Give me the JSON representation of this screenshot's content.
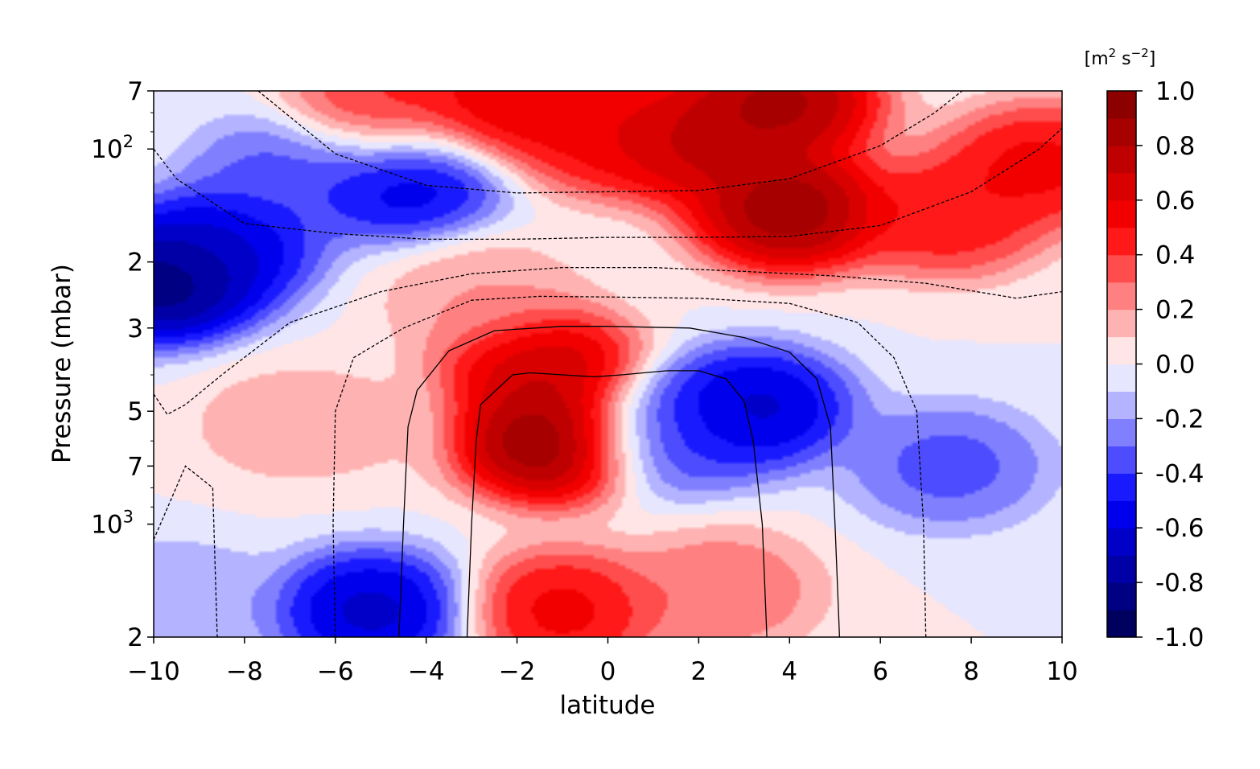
{
  "chart_data": {
    "type": "heatmap",
    "title": "",
    "xlabel": "latitude",
    "ylabel": "Pressure (mbar)",
    "xlim": [
      -10,
      10
    ],
    "ylim": [
      2000,
      70
    ],
    "yscale": "log",
    "x_ticks": [
      {
        "value": -10,
        "label": "−10"
      },
      {
        "value": -8,
        "label": "−8"
      },
      {
        "value": -6,
        "label": "−6"
      },
      {
        "value": -4,
        "label": "−4"
      },
      {
        "value": -2,
        "label": "−2"
      },
      {
        "value": 0,
        "label": "0"
      },
      {
        "value": 2,
        "label": "2"
      },
      {
        "value": 4,
        "label": "4"
      },
      {
        "value": 6,
        "label": "6"
      },
      {
        "value": 8,
        "label": "8"
      },
      {
        "value": 10,
        "label": "10"
      }
    ],
    "y_ticks": [
      {
        "value": 70,
        "label": "7",
        "sup": ""
      },
      {
        "value": 100,
        "label": "10",
        "sup": "2"
      },
      {
        "value": 200,
        "label": "2",
        "sup": ""
      },
      {
        "value": 300,
        "label": "3",
        "sup": ""
      },
      {
        "value": 500,
        "label": "5",
        "sup": ""
      },
      {
        "value": 700,
        "label": "7",
        "sup": ""
      },
      {
        "value": 1000,
        "label": "10",
        "sup": "3"
      },
      {
        "value": 2000,
        "label": "2",
        "sup": ""
      }
    ],
    "y_minor_ticks": [
      80,
      90,
      400,
      600,
      800,
      900
    ],
    "colorbar": {
      "unit_label": {
        "base": "[m",
        "sup1": "2",
        "mid": " s",
        "sup2": "−2",
        "end": "]"
      },
      "range": [
        -1.0,
        1.0
      ],
      "ticks": [
        {
          "value": 1.0,
          "label": "1.0"
        },
        {
          "value": 0.8,
          "label": "0.8"
        },
        {
          "value": 0.6,
          "label": "0.6"
        },
        {
          "value": 0.4,
          "label": "0.4"
        },
        {
          "value": 0.2,
          "label": "0.2"
        },
        {
          "value": 0.0,
          "label": "0.0"
        },
        {
          "value": -0.2,
          "label": "-0.2"
        },
        {
          "value": -0.4,
          "label": "-0.4"
        },
        {
          "value": -0.6,
          "label": "-0.6"
        },
        {
          "value": -0.8,
          "label": "-0.8"
        },
        {
          "value": -1.0,
          "label": "-1.0"
        }
      ],
      "levels": 20,
      "colormap": "seismic"
    },
    "field_features": [
      {
        "lat": -1.2,
        "p": 600,
        "value": 0.95
      },
      {
        "lat": -1.5,
        "p": 380,
        "value": 0.7
      },
      {
        "lat": -1.0,
        "p": 1700,
        "value": 0.55
      },
      {
        "lat": -2.3,
        "p": 76,
        "value": 0.6
      },
      {
        "lat": 3.8,
        "p": 75,
        "value": 0.85
      },
      {
        "lat": 4.0,
        "p": 145,
        "value": 0.9
      },
      {
        "lat": 2.0,
        "p": 95,
        "value": 0.75
      },
      {
        "lat": 7.5,
        "p": 150,
        "value": 0.5
      },
      {
        "lat": 9.5,
        "p": 110,
        "value": 0.55
      },
      {
        "lat": -5.0,
        "p": 80,
        "value": 0.45
      },
      {
        "lat": 0.0,
        "p": 90,
        "value": 0.55
      },
      {
        "lat": 2.5,
        "p": 1500,
        "value": 0.3
      },
      {
        "lat": -2.8,
        "p": 250,
        "value": 0.2
      },
      {
        "lat": -9.8,
        "p": 225,
        "value": -0.9
      },
      {
        "lat": -8.5,
        "p": 180,
        "value": -0.6
      },
      {
        "lat": -4.5,
        "p": 120,
        "value": -0.6
      },
      {
        "lat": -7.0,
        "p": 115,
        "value": -0.35
      },
      {
        "lat": 3.2,
        "p": 490,
        "value": -0.65
      },
      {
        "lat": 1.3,
        "p": 580,
        "value": -0.4
      },
      {
        "lat": -5.2,
        "p": 1700,
        "value": -0.65
      },
      {
        "lat": 7.5,
        "p": 700,
        "value": -0.35
      },
      {
        "lat": -9.5,
        "p": 1600,
        "value": -0.2
      },
      {
        "lat": -7.2,
        "p": 540,
        "value": 0.15
      },
      {
        "lat": -5.8,
        "p": 540,
        "value": 0.12
      }
    ],
    "contour_lines": {
      "solid_inner": [
        [
          -3.1,
          2000
        ],
        [
          -3.0,
          1000
        ],
        [
          -2.9,
          600
        ],
        [
          -2.8,
          480
        ],
        [
          -2.1,
          400
        ],
        [
          -1.7,
          395
        ],
        [
          -0.3,
          405
        ],
        [
          0.3,
          400
        ],
        [
          1.3,
          390
        ],
        [
          2.0,
          390
        ],
        [
          2.6,
          410
        ],
        [
          3.0,
          470
        ],
        [
          3.2,
          600
        ],
        [
          3.4,
          1000
        ],
        [
          3.5,
          2000
        ]
      ],
      "solid_outer": [
        [
          -4.6,
          2000
        ],
        [
          -4.5,
          1000
        ],
        [
          -4.4,
          550
        ],
        [
          -4.2,
          440
        ],
        [
          -3.5,
          345
        ],
        [
          -2.5,
          305
        ],
        [
          -1.0,
          297
        ],
        [
          0.0,
          297
        ],
        [
          1.8,
          300
        ],
        [
          3.0,
          318
        ],
        [
          4.0,
          348
        ],
        [
          4.6,
          410
        ],
        [
          4.9,
          550
        ],
        [
          5.0,
          1000
        ],
        [
          5.1,
          2000
        ]
      ],
      "dashed_1": [
        [
          -6.0,
          2000
        ],
        [
          -6.05,
          1000
        ],
        [
          -6.0,
          500
        ],
        [
          -5.6,
          360
        ],
        [
          -4.5,
          300
        ],
        [
          -3.0,
          253
        ],
        [
          -1.5,
          247
        ],
        [
          0.0,
          248
        ],
        [
          2.0,
          250
        ],
        [
          4.0,
          258
        ],
        [
          5.5,
          290
        ],
        [
          6.3,
          360
        ],
        [
          6.8,
          500
        ],
        [
          6.95,
          1000
        ],
        [
          7.0,
          2000
        ]
      ],
      "dashed_2": [
        [
          -10.0,
          450
        ],
        [
          -9.7,
          510
        ],
        [
          -9.3,
          480
        ],
        [
          -8.5,
          400
        ],
        [
          -7.0,
          290
        ],
        [
          -5.0,
          240
        ],
        [
          -3.0,
          215
        ],
        [
          -1.0,
          207
        ],
        [
          1.0,
          207
        ],
        [
          3.0,
          212
        ],
        [
          5.0,
          218
        ],
        [
          7.0,
          228
        ],
        [
          9.0,
          250
        ],
        [
          10.0,
          240
        ]
      ],
      "dashed_3": [
        [
          -10.0,
          100
        ],
        [
          -9.5,
          120
        ],
        [
          -8.0,
          158
        ],
        [
          -6.0,
          168
        ],
        [
          -4.0,
          174
        ],
        [
          -2.0,
          174
        ],
        [
          0.0,
          172
        ],
        [
          2.0,
          172
        ],
        [
          4.0,
          171
        ],
        [
          6.0,
          160
        ],
        [
          8.0,
          130
        ],
        [
          9.5,
          100
        ],
        [
          10.0,
          88
        ]
      ],
      "dashed_4": [
        [
          -7.7,
          70
        ],
        [
          -6.0,
          103
        ],
        [
          -4.0,
          125
        ],
        [
          -2.0,
          131
        ],
        [
          0.0,
          130
        ],
        [
          2.0,
          129
        ],
        [
          4.0,
          120
        ],
        [
          6.0,
          98
        ],
        [
          7.2,
          80
        ],
        [
          7.8,
          70
        ]
      ],
      "dashed_5": [
        [
          -10.0,
          1100
        ],
        [
          -9.3,
          700
        ],
        [
          -8.7,
          800
        ],
        [
          -8.6,
          2000
        ]
      ]
    }
  }
}
